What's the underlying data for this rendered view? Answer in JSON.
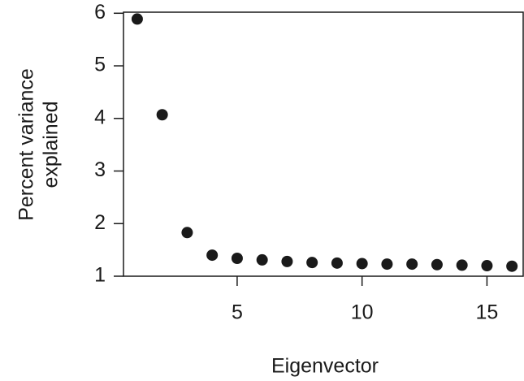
{
  "chart_data": {
    "type": "scatter",
    "x_label": "Eigenvector",
    "y_label": [
      "Percent variance",
      "explained"
    ],
    "x": [
      1,
      2,
      3,
      4,
      5,
      6,
      7,
      8,
      9,
      10,
      11,
      12,
      13,
      14,
      15,
      16
    ],
    "series": [
      {
        "color": "#1a1a1a",
        "values": [
          5.89,
          4.07,
          1.83,
          1.4,
          1.34,
          1.31,
          1.28,
          1.26,
          1.25,
          1.24,
          1.23,
          1.23,
          1.22,
          1.21,
          1.2,
          1.19
        ]
      }
    ],
    "xlim": [
      0.45,
      16.45
    ],
    "ylim": [
      1,
      6.02
    ],
    "xticks": [
      5,
      10,
      15
    ],
    "yticks": [
      1,
      2,
      3,
      4,
      5,
      6
    ]
  }
}
